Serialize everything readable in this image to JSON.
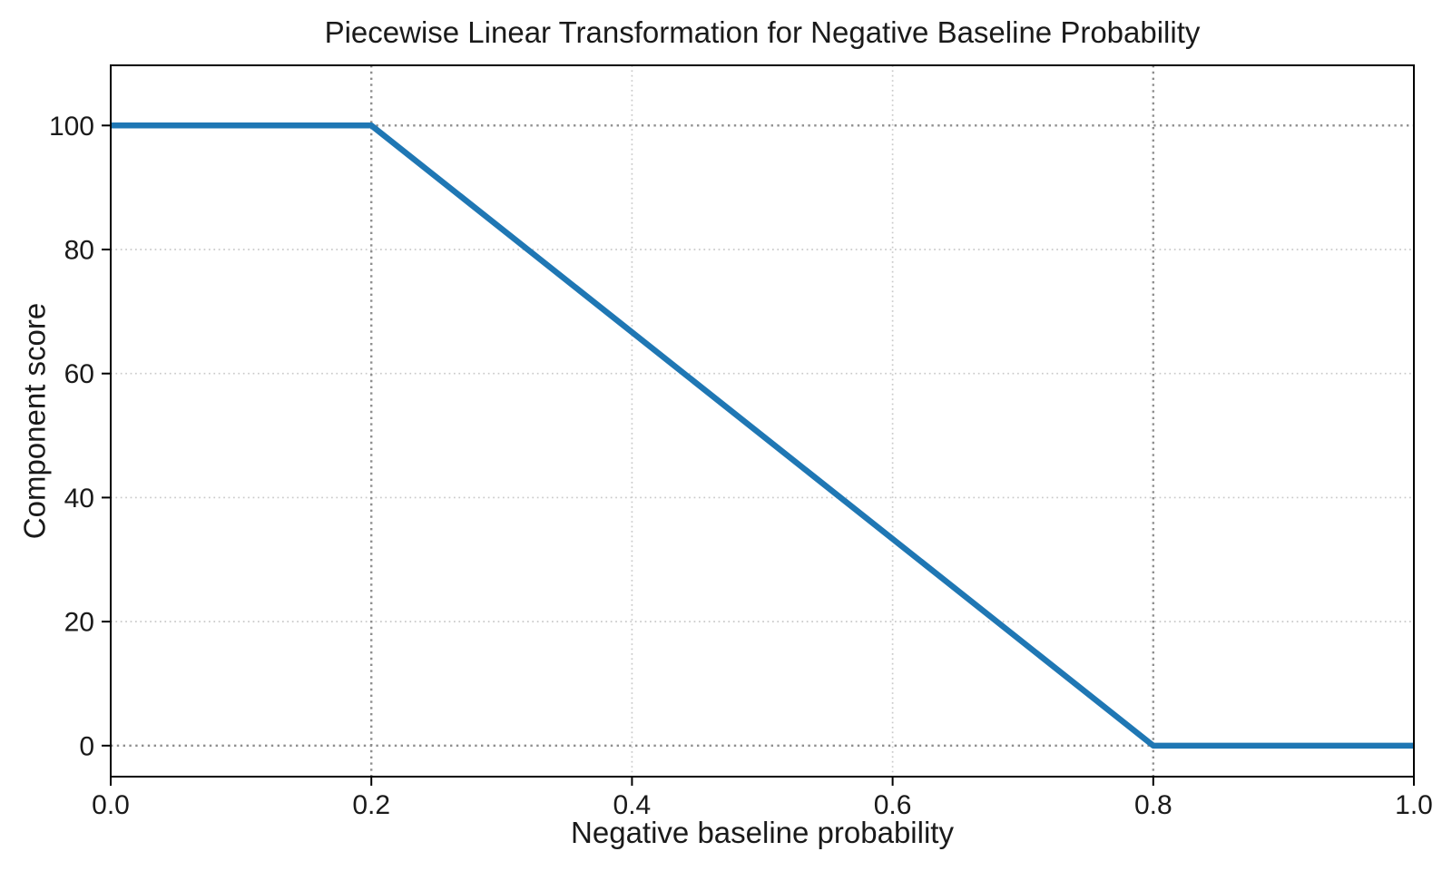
{
  "chart_data": {
    "type": "line",
    "title": "Piecewise Linear Transformation for Negative Baseline Probability",
    "xlabel": "Negative baseline probability",
    "ylabel": "Component score",
    "xlim": [
      0.0,
      1.0
    ],
    "ylim": [
      -5.0,
      109.7
    ],
    "x_ticks": [
      0.0,
      0.2,
      0.4,
      0.6,
      0.8,
      1.0
    ],
    "x_tick_labels": [
      "0.0",
      "0.2",
      "0.4",
      "0.6",
      "0.8",
      "1.0"
    ],
    "y_ticks": [
      0,
      20,
      40,
      60,
      80,
      100
    ],
    "y_tick_labels": [
      "0",
      "20",
      "40",
      "60",
      "80",
      "100"
    ],
    "grid": {
      "on": true,
      "style": "dotted",
      "color": "#c9c9c9",
      "vertical_x": [
        0.4,
        0.6
      ],
      "horizontal_y": [
        20,
        40,
        60,
        80
      ]
    },
    "reference_lines": {
      "style": "dotted",
      "color": "#8f8f8f",
      "vertical_x": [
        0.2,
        0.8
      ],
      "horizontal_y": [
        0,
        100
      ]
    },
    "series": [
      {
        "name": "component_score",
        "color": "#1f77b4",
        "line_width": 6.5,
        "points": [
          [
            0.0,
            100
          ],
          [
            0.2,
            100
          ],
          [
            0.8,
            0
          ],
          [
            1.0,
            0
          ]
        ]
      }
    ],
    "spine_color": "#000000",
    "tick_color": "#000000",
    "legend_position": "none",
    "background": "#ffffff"
  }
}
